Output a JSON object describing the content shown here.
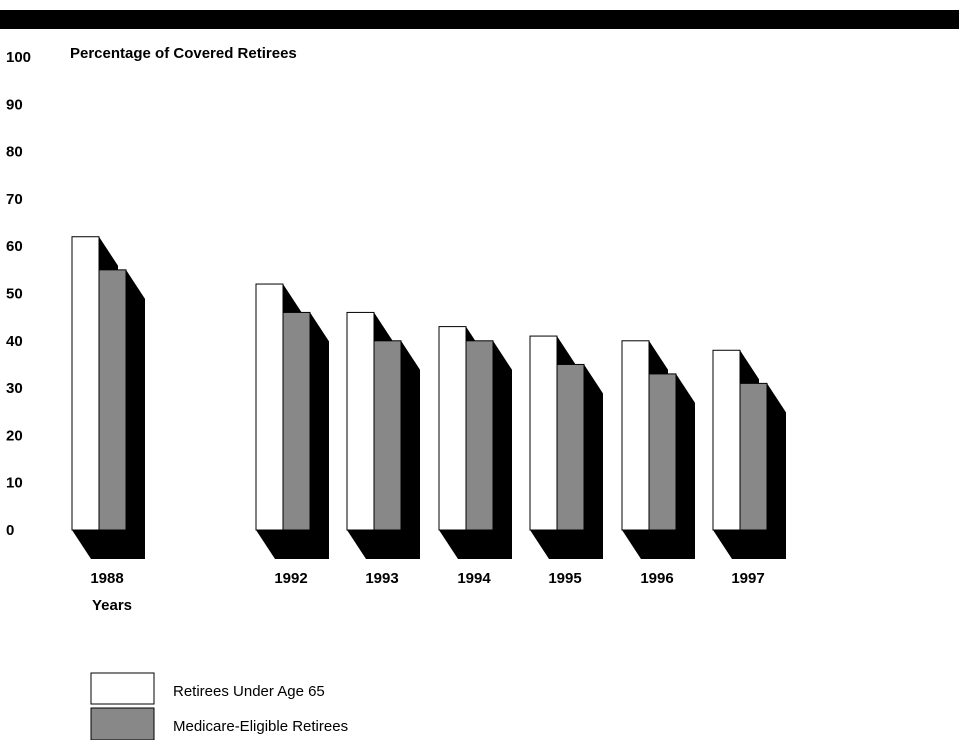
{
  "chart_data": {
    "type": "bar",
    "title": "",
    "ylabel": "Percentage of Covered Retirees",
    "xlabel": "Years",
    "ylim": [
      0,
      100
    ],
    "yticks": [
      "100",
      "90",
      "80",
      "70",
      "60",
      "50",
      "40",
      "30",
      "20",
      "10",
      "0"
    ],
    "categories": [
      "1988",
      "1992",
      "1993",
      "1994",
      "1995",
      "1996",
      "1997"
    ],
    "series": [
      {
        "name": "Retirees Under Age 65",
        "values": [
          62,
          52,
          46,
          43,
          41,
          40,
          38
        ],
        "color": "#ffffff"
      },
      {
        "name": "Medicare-Eligible Retirees",
        "values": [
          55,
          46,
          40,
          40,
          35,
          33,
          31
        ],
        "color": "#888888"
      }
    ],
    "shadow_color": "#000000",
    "grid": false,
    "legend_position": "bottom-left"
  }
}
